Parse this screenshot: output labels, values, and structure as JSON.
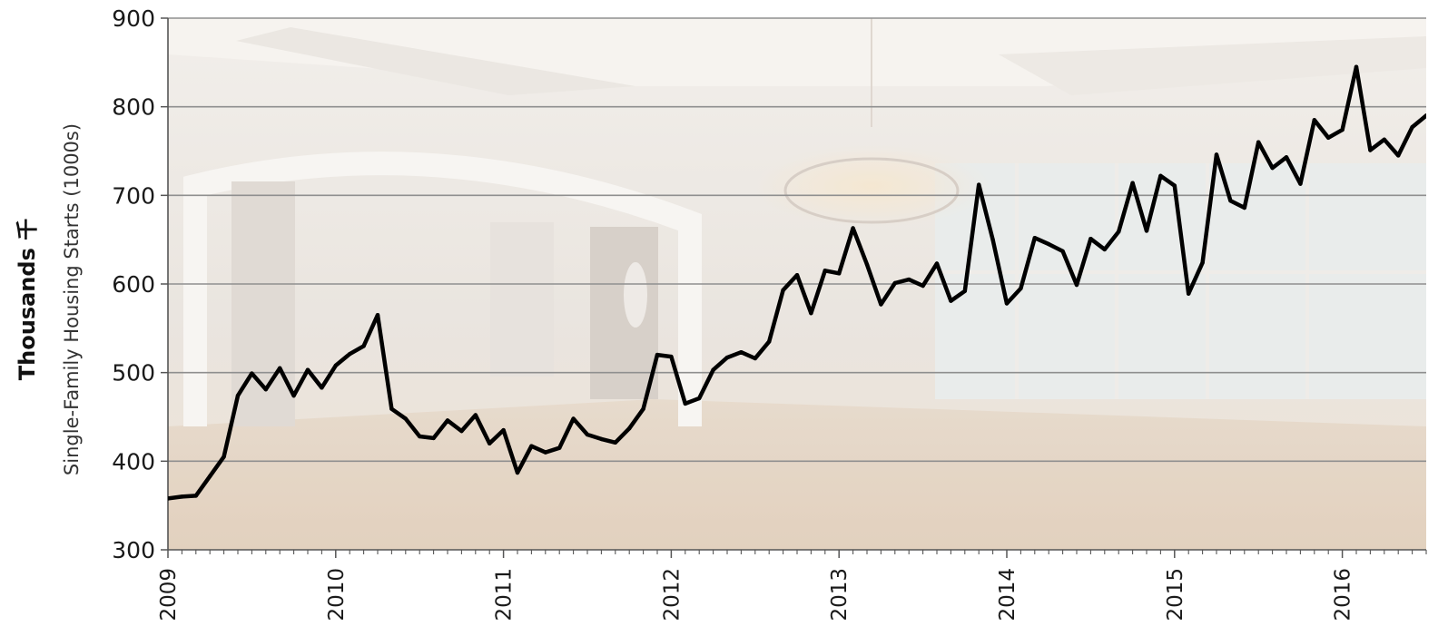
{
  "chart_data": {
    "type": "line",
    "title": "",
    "outer_label": "Thousands 千",
    "ylabel": "Single-Family Housing Starts (1000s)",
    "xlabel": "",
    "ylim": [
      300,
      900
    ],
    "yticks": [
      300,
      400,
      500,
      600,
      700,
      800,
      900
    ],
    "xlim": [
      "2009-01",
      "2016-07"
    ],
    "x_tick_labels": [
      "2009",
      "2010",
      "2011",
      "2012",
      "2013",
      "2014",
      "2015",
      "2016"
    ],
    "grid": "horizontal",
    "background": "photo of empty interior room (faded)",
    "line_color": "#000000",
    "series": [
      {
        "x": [
          "2009-01",
          "2009-02",
          "2009-03",
          "2009-04",
          "2009-05",
          "2009-06",
          "2009-07",
          "2009-08",
          "2009-09",
          "2009-10",
          "2009-11",
          "2009-12",
          "2010-01",
          "2010-02",
          "2010-03",
          "2010-04",
          "2010-05",
          "2010-06",
          "2010-07",
          "2010-08",
          "2010-09",
          "2010-10",
          "2010-11",
          "2010-12",
          "2011-01",
          "2011-02",
          "2011-03",
          "2011-04",
          "2011-05",
          "2011-06",
          "2011-07",
          "2011-08",
          "2011-09",
          "2011-10",
          "2011-11",
          "2011-12",
          "2012-01",
          "2012-02",
          "2012-03",
          "2012-04",
          "2012-05",
          "2012-06",
          "2012-07",
          "2012-08",
          "2012-09",
          "2012-10",
          "2012-11",
          "2012-12",
          "2013-01",
          "2013-02",
          "2013-03",
          "2013-04",
          "2013-05",
          "2013-06",
          "2013-07",
          "2013-08",
          "2013-09",
          "2013-10",
          "2013-11",
          "2013-12",
          "2014-01",
          "2014-02",
          "2014-03",
          "2014-04",
          "2014-05",
          "2014-06",
          "2014-07",
          "2014-08",
          "2014-09",
          "2014-10",
          "2014-11",
          "2014-12",
          "2015-01",
          "2015-02",
          "2015-03",
          "2015-04",
          "2015-05",
          "2015-06",
          "2015-07",
          "2015-08",
          "2015-09",
          "2015-10",
          "2015-11",
          "2015-12",
          "2016-01",
          "2016-02",
          "2016-03",
          "2016-04",
          "2016-05",
          "2016-06",
          "2016-07"
        ],
        "values": [
          358,
          360,
          361,
          383,
          405,
          474,
          499,
          481,
          505,
          474,
          503,
          483,
          508,
          521,
          530,
          565,
          459,
          448,
          428,
          426,
          446,
          434,
          452,
          420,
          435,
          387,
          417,
          410,
          415,
          448,
          430,
          425,
          421,
          437,
          459,
          520,
          518,
          465,
          471,
          503,
          517,
          523,
          516,
          535,
          593,
          610,
          567,
          615,
          612,
          663,
          622,
          577,
          601,
          605,
          598,
          623,
          581,
          592,
          712,
          650,
          578,
          595,
          652,
          645,
          637,
          599,
          651,
          639,
          659,
          714,
          660,
          722,
          711,
          589,
          624,
          746,
          694,
          686,
          760,
          731,
          743,
          713,
          785,
          765,
          774,
          845,
          751,
          763,
          745,
          777,
          790
        ]
      }
    ]
  }
}
